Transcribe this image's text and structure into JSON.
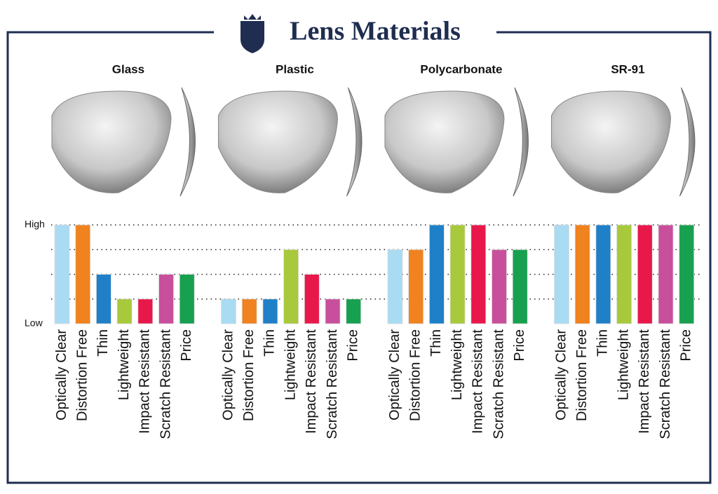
{
  "chart_data": {
    "type": "bar",
    "title": "Lens Materials",
    "colors": [
      "#a9dbf3",
      "#f0821f",
      "#1f80c8",
      "#a8c93b",
      "#e8184b",
      "#c84f9b",
      "#16a04f"
    ],
    "ylim": [
      0,
      4
    ],
    "yticks": [
      {
        "value": 0,
        "label": "Low"
      },
      {
        "value": 4,
        "label": "High"
      }
    ],
    "gridlines": [
      1,
      2,
      3,
      4
    ],
    "groups": [
      {
        "title": "Glass",
        "categories": [
          "Optically Clear",
          "Distortion Free",
          "Thin",
          "Lightweight",
          "Impact Resistant",
          "Scratch Resistant",
          "Price"
        ],
        "values": [
          4,
          4,
          2,
          1,
          1,
          2,
          2
        ]
      },
      {
        "title": "Plastic",
        "categories": [
          "Optically Clear",
          "Distortion Free",
          "Thin",
          "Lightweight",
          "Impact Resistant",
          "Scratch Resistant",
          "Price"
        ],
        "values": [
          1,
          1,
          1,
          3,
          2,
          1,
          1
        ]
      },
      {
        "title": "Polycarbonate",
        "categories": [
          "Optically Clear",
          "Distortion Free",
          "Thin",
          "Lightweight",
          "Impact Resistant",
          "Scratch Resistant",
          "Price"
        ],
        "values": [
          3,
          3,
          4,
          4,
          4,
          3,
          3
        ]
      },
      {
        "title": "SR-91",
        "categories": [
          "Optically Clear",
          "Distortion Free",
          "Thin",
          "Lightweight",
          "Impact Resistant",
          "Scratch Resistant",
          "Price"
        ],
        "values": [
          4,
          4,
          4,
          4,
          4,
          4,
          4
        ]
      }
    ]
  }
}
